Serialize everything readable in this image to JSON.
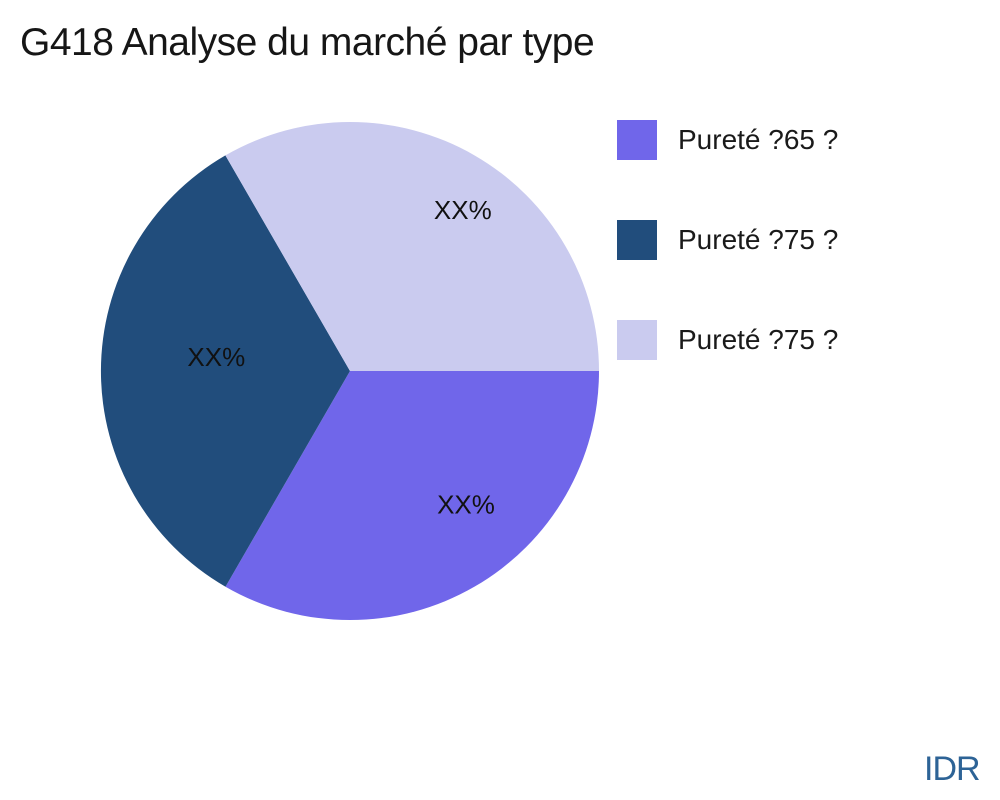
{
  "chart_data": {
    "type": "pie",
    "title": "G418 Analyse du marché par type",
    "legend_position": "right",
    "start_angle_deg": 0,
    "direction": "clockwise",
    "background": "#FFFFFF",
    "data_label_color": "#111111",
    "slices": [
      {
        "legend_label": "Pureté ?65 ?",
        "value": 33.33,
        "color": "#7066EA",
        "data_label": "XX%"
      },
      {
        "legend_label": "Pureté ?75 ?",
        "value": 33.33,
        "color": "#214D7C",
        "data_label": "XX%"
      },
      {
        "legend_label": "Pureté ?75 ?",
        "value": 33.34,
        "color": "#CACBEF",
        "data_label": "XX%"
      }
    ]
  },
  "watermark": {
    "text": "IDR",
    "color": "#2D6396"
  }
}
